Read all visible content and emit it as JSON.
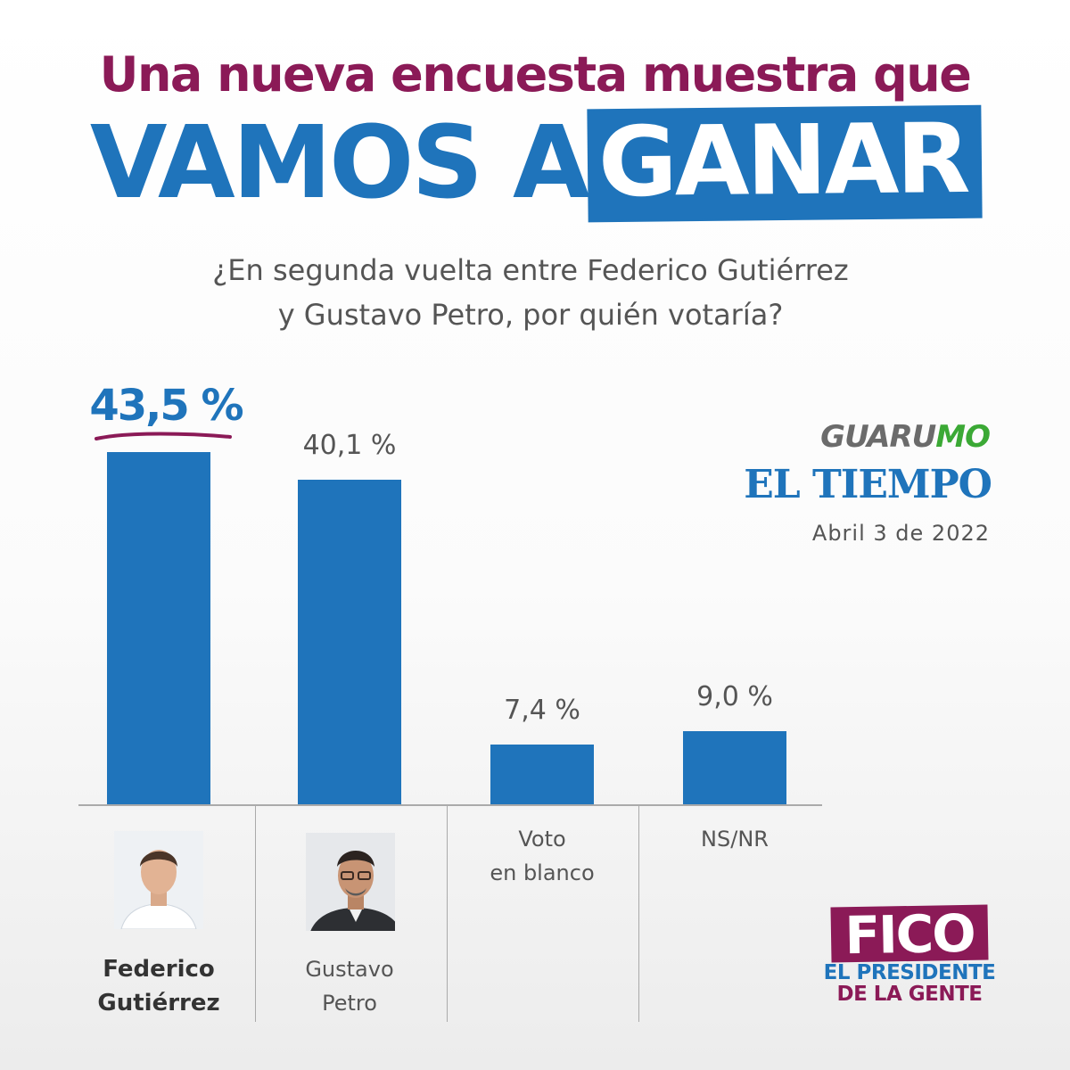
{
  "headline": {
    "line1": "Una nueva encuesta muestra que",
    "line2_plain": "VAMOS A",
    "line2_highlight": "GANAR"
  },
  "question": {
    "line1": "¿En segunda vuelta entre Federico Gutiérrez",
    "line2": "y Gustavo Petro, por quién votaría?"
  },
  "sources": {
    "pollster_part1": "GUARU",
    "pollster_part2": "MO",
    "media": "EL TIEMPO",
    "date": "Abril 3 de 2022"
  },
  "chart_data": {
    "type": "bar",
    "categories": [
      "Federico Gutiérrez",
      "Gustavo Petro",
      "Voto en blanco",
      "NS/NR"
    ],
    "values": [
      43.5,
      40.1,
      7.4,
      9.0
    ],
    "value_labels": [
      "43,5 %",
      "40,1 %",
      "7,4 %",
      "9,0 %"
    ],
    "category_lines": [
      [
        "Federico",
        "Gutiérrez"
      ],
      [
        "Gustavo",
        "Petro"
      ],
      [
        "Voto",
        "en blanco"
      ],
      [
        "NS/NR"
      ]
    ],
    "highlighted_category": "Federico Gutiérrez",
    "bar_color": "#1f74bb"
  },
  "branding": {
    "logo_main": "FICO",
    "logo_line1": "EL PRESIDENTE",
    "logo_line2": "DE LA GENTE"
  },
  "colors": {
    "brand_purple": "#8b1a57",
    "brand_blue": "#1f74bb",
    "pollster_green": "#3ba935",
    "text_gray": "#555555"
  },
  "icons": [
    "federico-gutierrez-photo",
    "gustavo-petro-photo"
  ]
}
